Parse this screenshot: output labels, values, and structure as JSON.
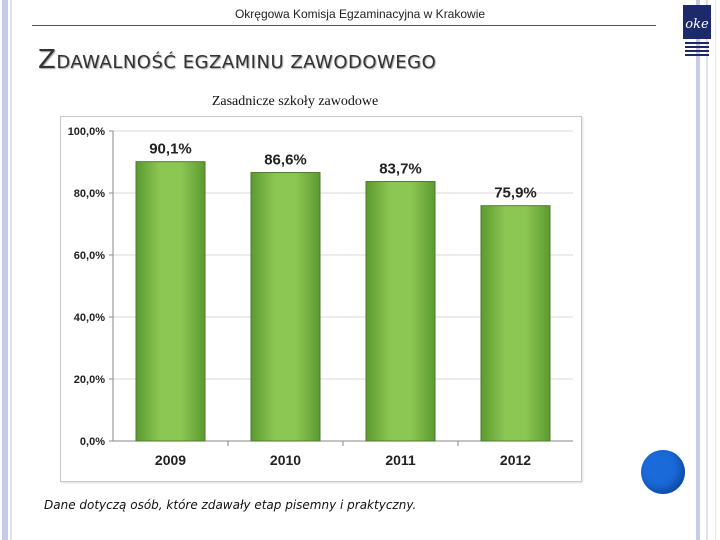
{
  "header": {
    "org_name": "Okręgowa Komisja Egzaminacyjna w Krakowie"
  },
  "slide": {
    "title_first": "Z",
    "title_rest": "DAWALNOŚĆ EGZAMINU ZAWODOWEGO",
    "subtitle": "Zasadnicze szkoły  zawodowe",
    "footnote": "Dane dotyczą osób, które zdawały etap pisemny i praktyczny."
  },
  "logo": {
    "icon": "oke-logo-icon",
    "color": "#1c2a6b"
  },
  "decor": {
    "circle_color": "#1a6ad9"
  },
  "chart_data": {
    "type": "bar",
    "categories": [
      "2009",
      "2010",
      "2011",
      "2012"
    ],
    "values": [
      90.1,
      86.6,
      83.7,
      75.9
    ],
    "value_labels": [
      "90,1%",
      "86,6%",
      "83,7%",
      "75,9%"
    ],
    "yticks": [
      0,
      20,
      40,
      60,
      80,
      100
    ],
    "ytick_labels": [
      "0,0%",
      "20,0%",
      "40,0%",
      "60,0%",
      "80,0%",
      "100,0%"
    ],
    "ylim": [
      0,
      100
    ],
    "grid": true,
    "bar_color": "#7ab648",
    "bar_edge_color": "#4e7a2a"
  }
}
